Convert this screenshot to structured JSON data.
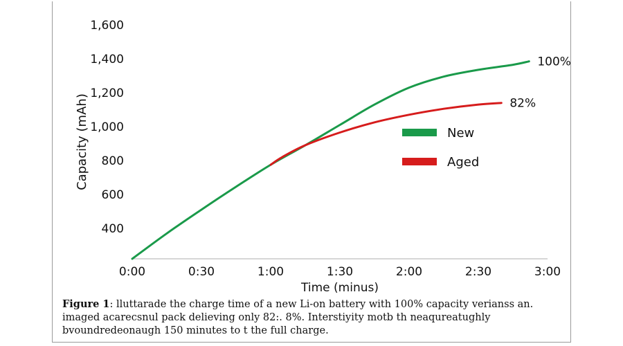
{
  "chart_data": {
    "type": "line",
    "xlabel": "Time (minus)",
    "ylabel": "Capacity (mAh)",
    "x_unit": "minutes",
    "xlim": [
      0,
      180
    ],
    "ylim": [
      220,
      1600
    ],
    "x_ticks": [
      {
        "value": 0,
        "label": "0:00"
      },
      {
        "value": 30,
        "label": "0:30"
      },
      {
        "value": 60,
        "label": "1:00"
      },
      {
        "value": 90,
        "label": "1:30"
      },
      {
        "value": 120,
        "label": "2:00"
      },
      {
        "value": 150,
        "label": "2:30"
      },
      {
        "value": 180,
        "label": "3:00"
      }
    ],
    "y_ticks": [
      {
        "value": 400,
        "label": "400"
      },
      {
        "value": 600,
        "label": "600"
      },
      {
        "value": 800,
        "label": "800"
      },
      {
        "value": 1000,
        "label": "1,000"
      },
      {
        "value": 1200,
        "label": "1,200"
      },
      {
        "value": 1400,
        "label": "1,400"
      },
      {
        "value": 1600,
        "label": "1,600"
      }
    ],
    "grid": false,
    "legend_position": "center-right",
    "series": [
      {
        "name": "New",
        "color": "#1a9a4a",
        "end_label": "100%",
        "points": [
          [
            0,
            220
          ],
          [
            15,
            370
          ],
          [
            30,
            510
          ],
          [
            45,
            645
          ],
          [
            60,
            775
          ],
          [
            75,
            890
          ],
          [
            90,
            1010
          ],
          [
            105,
            1130
          ],
          [
            120,
            1230
          ],
          [
            135,
            1295
          ],
          [
            150,
            1335
          ],
          [
            165,
            1365
          ],
          [
            172,
            1385
          ]
        ]
      },
      {
        "name": "Aged",
        "color": "#d61c1c",
        "end_label": "82%",
        "points": [
          [
            60,
            775
          ],
          [
            65,
            820
          ],
          [
            75,
            890
          ],
          [
            90,
            965
          ],
          [
            105,
            1025
          ],
          [
            120,
            1070
          ],
          [
            135,
            1105
          ],
          [
            150,
            1130
          ],
          [
            160,
            1140
          ]
        ]
      }
    ]
  },
  "caption": {
    "label": "Figure 1",
    "text": ": lluttarade the charge time of a new Li-on battery with 100% capacity verianss an. imaged acarecsnul pack delieving only 82:. 8%. Interstiyity motb th neaqureatughly bvoundredeonaugh 150 minutes to t the full charge."
  }
}
